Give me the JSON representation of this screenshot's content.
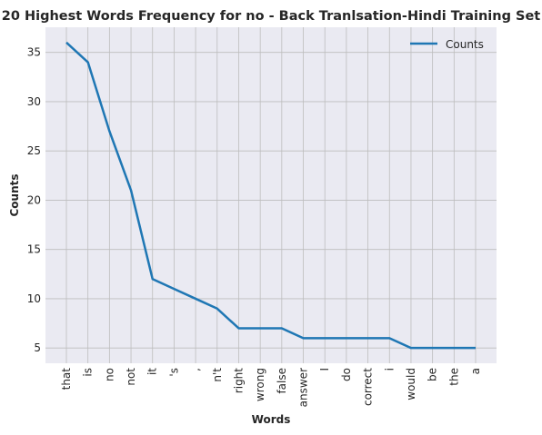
{
  "chart_data": {
    "type": "line",
    "title": "20 Highest Words Frequency for no - Back Tranlsation-Hindi Training Set",
    "xlabel": "Words",
    "ylabel": "Counts",
    "categories": [
      "that",
      "is",
      "no",
      "not",
      "it",
      "'s",
      ",",
      "n't",
      "right",
      "wrong",
      "false",
      "answer",
      "I",
      "do",
      "correct",
      "i",
      "would",
      "be",
      "the",
      "a"
    ],
    "series": [
      {
        "name": "Counts",
        "values": [
          36,
          34,
          27,
          21,
          12,
          11,
          10,
          9,
          7,
          7,
          7,
          6,
          6,
          6,
          6,
          6,
          5,
          5,
          5,
          5
        ],
        "color": "#1f77b4"
      }
    ],
    "ylim": [
      3.45,
      37.55
    ],
    "yticks": [
      5,
      10,
      15,
      20,
      25,
      30,
      35
    ],
    "grid": true,
    "legend": "top-right",
    "background": "#eaeaf2",
    "grid_color": "#bdbdbd"
  }
}
